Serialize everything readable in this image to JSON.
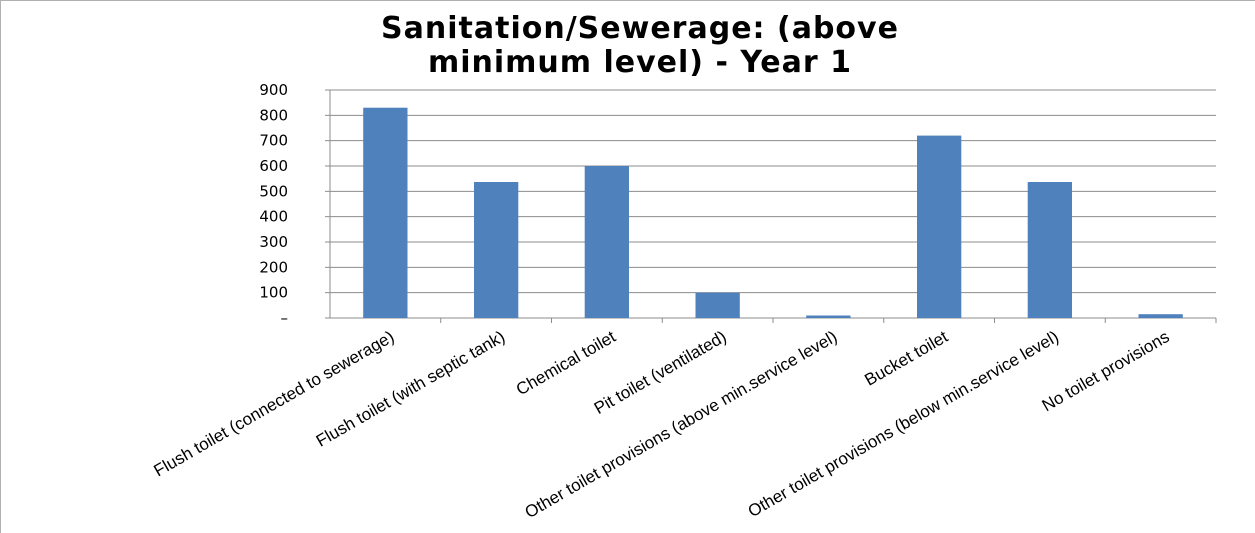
{
  "chart_data": {
    "type": "bar",
    "title_lines": [
      "Sanitation/Sewerage: (above",
      "minimum level) - Year 1"
    ],
    "categories": [
      "Flush toilet (connected to sewerage)",
      "Flush toilet (with septic tank)",
      "Chemical toilet",
      "Pit toilet (ventilated)",
      "Other toilet provisions (above  min.service level)",
      "Bucket toilet",
      "Other toilet provisions (below min.service level)",
      "No toilet provisions"
    ],
    "values": [
      830,
      537,
      600,
      100,
      10,
      720,
      537,
      15
    ],
    "ylim": [
      0,
      900
    ],
    "yticks": [
      0,
      100,
      200,
      300,
      400,
      500,
      600,
      700,
      800,
      900
    ],
    "ytick_labels": [
      "–",
      "100",
      "200",
      "300",
      "400",
      "500",
      "600",
      "700",
      "800",
      "900"
    ],
    "grid": true,
    "bar_color": "#4f81bd",
    "xlabel": "",
    "ylabel": ""
  }
}
